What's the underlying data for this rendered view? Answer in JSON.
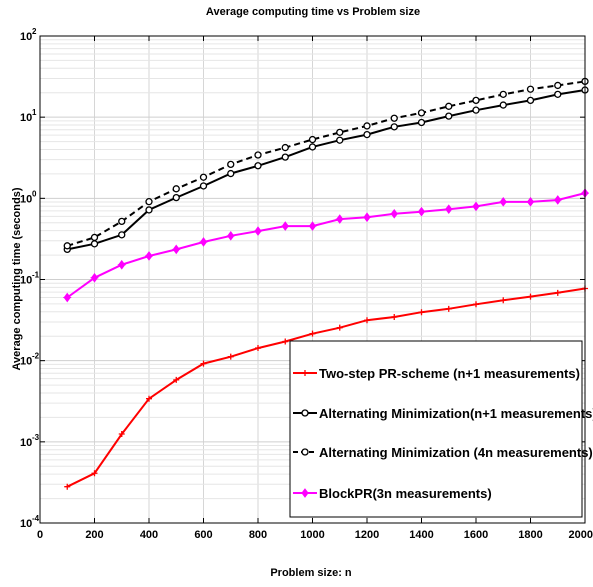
{
  "chart_data": {
    "type": "line",
    "title": "Average computing time vs Problem size",
    "xlabel": "Problem size: n",
    "ylabel": "Average computing time (seconds)",
    "xlim": [
      0,
      2000
    ],
    "ylim": [
      0.0001,
      100
    ],
    "yscale": "log",
    "grid": true,
    "legend_position": "bottom-right",
    "x_ticks": [
      "0",
      "200",
      "400",
      "600",
      "800",
      "1000",
      "1200",
      "1400",
      "1600",
      "1800",
      "2000"
    ],
    "y_ticks": [
      {
        "base": "10",
        "exp": "-4"
      },
      {
        "base": "10",
        "exp": "-3"
      },
      {
        "base": "10",
        "exp": "-2"
      },
      {
        "base": "10",
        "exp": "-1"
      },
      {
        "base": "10",
        "exp": "0"
      },
      {
        "base": "10",
        "exp": "1"
      },
      {
        "base": "10",
        "exp": "2"
      }
    ],
    "x": [
      100,
      200,
      300,
      400,
      500,
      600,
      700,
      800,
      900,
      1000,
      1100,
      1200,
      1300,
      1400,
      1500,
      1600,
      1700,
      1800,
      1900,
      2000
    ],
    "series": [
      {
        "name": "Two-step PR-scheme (n+1 measurements)",
        "color": "#ff0000",
        "line": "solid",
        "marker": "plus",
        "values": [
          0.00028,
          0.00041,
          0.00125,
          0.0034,
          0.0058,
          0.0092,
          0.0112,
          0.0143,
          0.0172,
          0.0215,
          0.0255,
          0.0315,
          0.0345,
          0.0395,
          0.0435,
          0.0495,
          0.0555,
          0.0615,
          0.0685,
          0.0775
        ]
      },
      {
        "name": "Alternating Minimization(n+1 measurements)",
        "color": "#000000",
        "line": "solid",
        "marker": "circle",
        "values": [
          0.235,
          0.275,
          0.355,
          0.72,
          1.02,
          1.42,
          2.02,
          2.52,
          3.22,
          4.3,
          5.2,
          6.1,
          7.6,
          8.6,
          10.3,
          12.2,
          14.1,
          16.1,
          19.1,
          21.6
        ]
      },
      {
        "name": "Alternating Minimization (4n measurements)",
        "color": "#000000",
        "line": "dashed",
        "marker": "circle",
        "values": [
          0.26,
          0.33,
          0.52,
          0.91,
          1.31,
          1.82,
          2.62,
          3.42,
          4.22,
          5.3,
          6.5,
          7.8,
          9.7,
          11.3,
          13.6,
          16.1,
          19.1,
          22.1,
          24.6,
          27.6
        ]
      },
      {
        "name": "BlockPR(3n measurements)",
        "color": "#ff00ff",
        "line": "solid",
        "marker": "diamond",
        "values": [
          0.06,
          0.105,
          0.152,
          0.195,
          0.235,
          0.29,
          0.345,
          0.395,
          0.455,
          0.455,
          0.555,
          0.585,
          0.645,
          0.685,
          0.735,
          0.795,
          0.905,
          0.905,
          0.955,
          1.16
        ]
      }
    ]
  }
}
